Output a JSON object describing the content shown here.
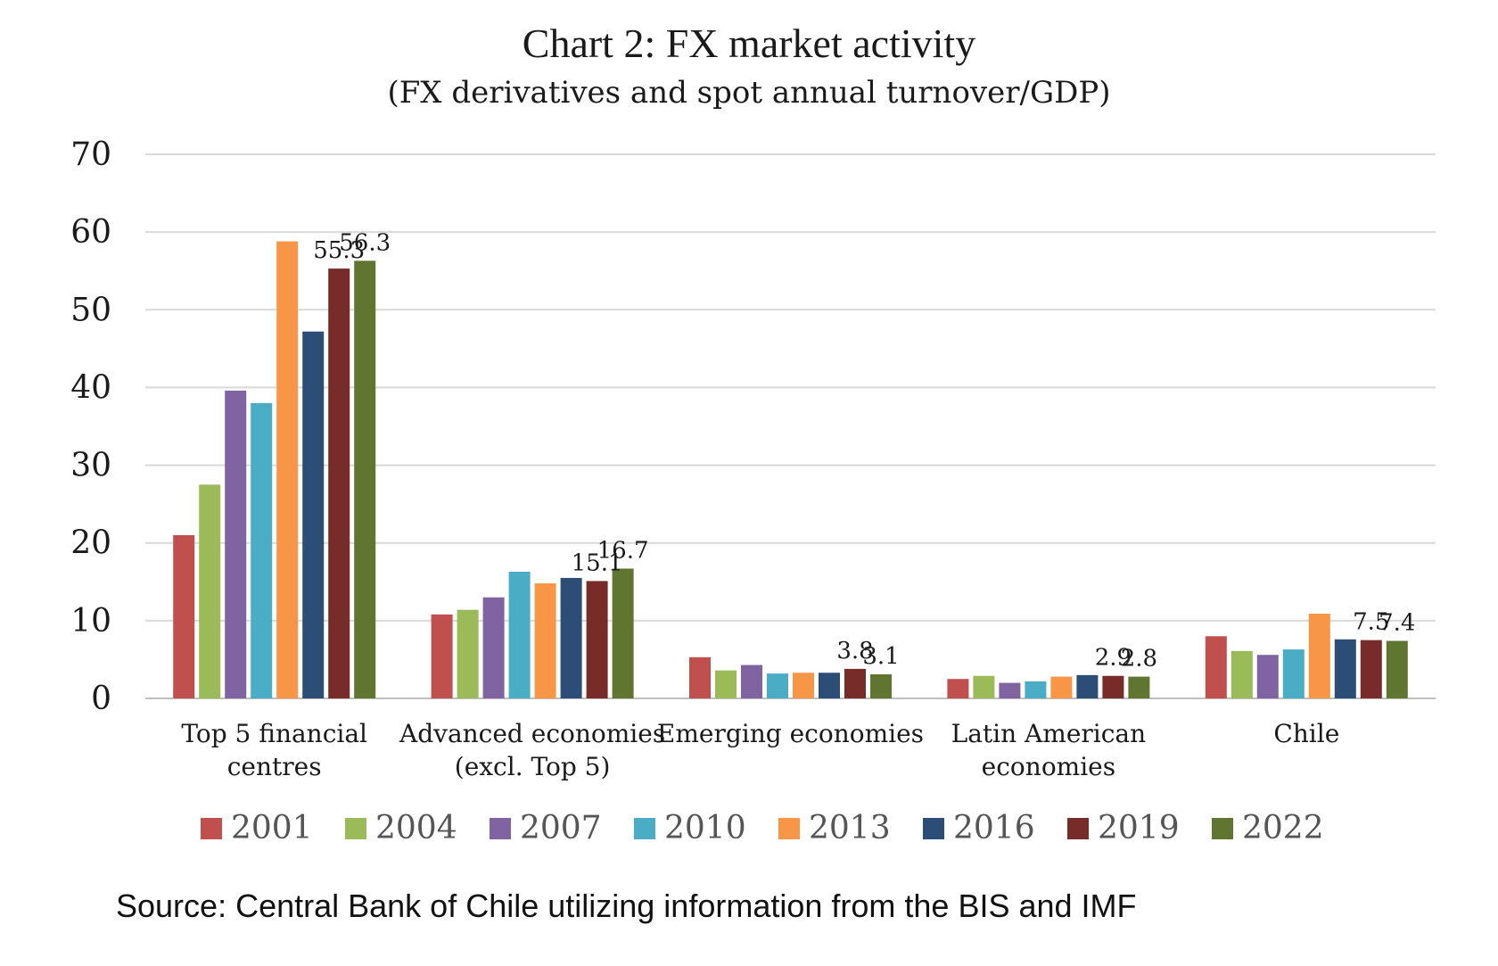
{
  "chart_data": {
    "type": "bar",
    "title": "Chart 2: FX market activity",
    "subtitle": "(FX derivatives and spot annual turnover/GDP)",
    "xlabel": "",
    "ylabel": "",
    "ylim": [
      0,
      70
    ],
    "yticks": [
      0,
      10,
      20,
      30,
      40,
      50,
      60,
      70
    ],
    "grid": true,
    "legend_position": "bottom",
    "categories": [
      [
        "Top 5 financial",
        "centres"
      ],
      [
        "Advanced economies",
        "(excl. Top 5)"
      ],
      [
        "Emerging economies"
      ],
      [
        "Latin American",
        "economies"
      ],
      [
        "Chile"
      ]
    ],
    "series": [
      {
        "name": "2001",
        "color": "#C0504D",
        "values": [
          21.0,
          10.8,
          5.3,
          2.5,
          8.0
        ]
      },
      {
        "name": "2004",
        "color": "#9BBB59",
        "values": [
          27.5,
          11.4,
          3.6,
          2.9,
          6.1
        ]
      },
      {
        "name": "2007",
        "color": "#8064A2",
        "values": [
          39.6,
          13.0,
          4.3,
          2.0,
          5.6
        ]
      },
      {
        "name": "2010",
        "color": "#4BACC6",
        "values": [
          38.0,
          16.3,
          3.2,
          2.2,
          6.3
        ]
      },
      {
        "name": "2013",
        "color": "#F79646",
        "values": [
          58.8,
          14.8,
          3.3,
          2.8,
          10.9
        ]
      },
      {
        "name": "2016",
        "color": "#2C4D75",
        "values": [
          47.2,
          15.5,
          3.3,
          3.0,
          7.6
        ]
      },
      {
        "name": "2019",
        "color": "#772C2A",
        "values": [
          55.3,
          15.1,
          3.8,
          2.9,
          7.5
        ]
      },
      {
        "name": "2022",
        "color": "#5F7530",
        "values": [
          56.3,
          16.7,
          3.1,
          2.8,
          7.4
        ]
      }
    ],
    "data_labels": [
      {
        "series": "2019",
        "category_index": 0,
        "text": "55.3"
      },
      {
        "series": "2022",
        "category_index": 0,
        "text": "56.3"
      },
      {
        "series": "2019",
        "category_index": 1,
        "text": "15.1"
      },
      {
        "series": "2022",
        "category_index": 1,
        "text": "16.7"
      },
      {
        "series": "2019",
        "category_index": 2,
        "text": "3.8"
      },
      {
        "series": "2022",
        "category_index": 2,
        "text": "3.1"
      },
      {
        "series": "2019",
        "category_index": 3,
        "text": "2.9"
      },
      {
        "series": "2022",
        "category_index": 3,
        "text": "2.8"
      },
      {
        "series": "2019",
        "category_index": 4,
        "text": "7.5"
      },
      {
        "series": "2022",
        "category_index": 4,
        "text": "7.4"
      }
    ],
    "source": "Source: Central Bank of Chile utilizing information from the BIS and IMF",
    "colors": {
      "gridline": "#D9D9D9",
      "axis": "#BFBFBF",
      "text": "#1a1a1a"
    }
  }
}
